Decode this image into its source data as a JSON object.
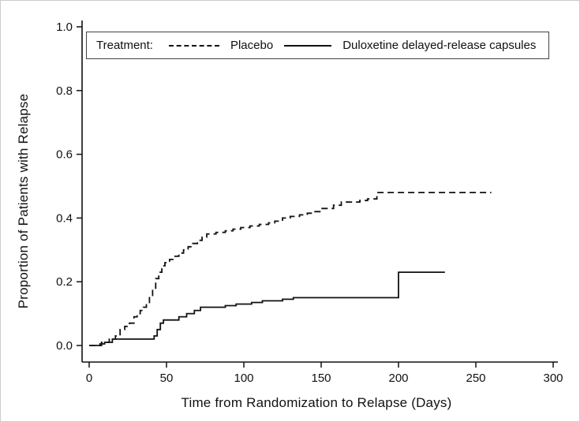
{
  "chart_data": {
    "type": "line",
    "subtype": "kaplan-meier-step",
    "title": "",
    "xlabel": "Time from Randomization to Relapse (Days)",
    "ylabel": "Proportion of Patients with Relapse",
    "xlim": [
      0,
      300
    ],
    "ylim": [
      0.0,
      1.0
    ],
    "x_ticks": [
      0,
      50,
      100,
      150,
      200,
      250,
      300
    ],
    "y_ticks": [
      0.0,
      0.2,
      0.4,
      0.6,
      0.8,
      1.0
    ],
    "y_tick_labels": [
      "0.0",
      "0.2",
      "0.4",
      "0.6",
      "0.8",
      "1.0"
    ],
    "grid": false,
    "legend_title": "Treatment:",
    "legend_position": "inside-top-left",
    "line_color": "#111111",
    "series": [
      {
        "name": "Placebo",
        "style": "dashed",
        "step": true,
        "points": [
          [
            0,
            0
          ],
          [
            8,
            0.01
          ],
          [
            13,
            0.02
          ],
          [
            17,
            0.03
          ],
          [
            20,
            0.05
          ],
          [
            23,
            0.06
          ],
          [
            26,
            0.07
          ],
          [
            29,
            0.09
          ],
          [
            31,
            0.1
          ],
          [
            33,
            0.11
          ],
          [
            35,
            0.12
          ],
          [
            37,
            0.13
          ],
          [
            39,
            0.15
          ],
          [
            41,
            0.18
          ],
          [
            43,
            0.21
          ],
          [
            45,
            0.23
          ],
          [
            47,
            0.25
          ],
          [
            49,
            0.26
          ],
          [
            52,
            0.27
          ],
          [
            55,
            0.28
          ],
          [
            58,
            0.29
          ],
          [
            61,
            0.3
          ],
          [
            64,
            0.31
          ],
          [
            67,
            0.32
          ],
          [
            70,
            0.33
          ],
          [
            73,
            0.34
          ],
          [
            76,
            0.35
          ],
          [
            82,
            0.355
          ],
          [
            88,
            0.36
          ],
          [
            93,
            0.365
          ],
          [
            98,
            0.37
          ],
          [
            104,
            0.375
          ],
          [
            110,
            0.38
          ],
          [
            116,
            0.385
          ],
          [
            120,
            0.39
          ],
          [
            125,
            0.4
          ],
          [
            130,
            0.405
          ],
          [
            136,
            0.41
          ],
          [
            141,
            0.415
          ],
          [
            146,
            0.42
          ],
          [
            150,
            0.43
          ],
          [
            158,
            0.44
          ],
          [
            163,
            0.45
          ],
          [
            175,
            0.455
          ],
          [
            180,
            0.46
          ],
          [
            186,
            0.48
          ],
          [
            260,
            0.48
          ]
        ]
      },
      {
        "name": "Duloxetine delayed-release capsules",
        "style": "solid",
        "step": true,
        "points": [
          [
            0,
            0
          ],
          [
            7,
            0.005
          ],
          [
            10,
            0.01
          ],
          [
            15,
            0.02
          ],
          [
            42,
            0.03
          ],
          [
            44,
            0.05
          ],
          [
            46,
            0.07
          ],
          [
            48,
            0.08
          ],
          [
            58,
            0.09
          ],
          [
            63,
            0.1
          ],
          [
            68,
            0.11
          ],
          [
            72,
            0.12
          ],
          [
            88,
            0.125
          ],
          [
            95,
            0.13
          ],
          [
            105,
            0.135
          ],
          [
            112,
            0.14
          ],
          [
            125,
            0.145
          ],
          [
            132,
            0.15
          ],
          [
            200,
            0.23
          ],
          [
            230,
            0.23
          ]
        ]
      }
    ]
  }
}
